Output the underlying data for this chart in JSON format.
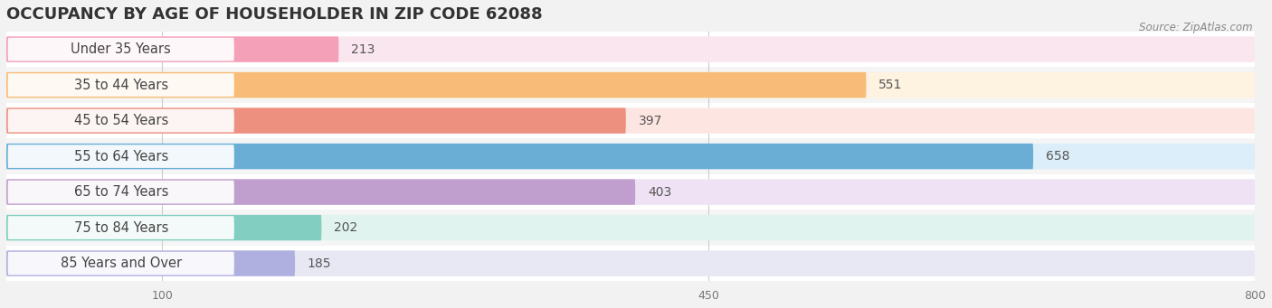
{
  "title": "OCCUPANCY BY AGE OF HOUSEHOLDER IN ZIP CODE 62088",
  "source": "Source: ZipAtlas.com",
  "categories": [
    "Under 35 Years",
    "35 to 44 Years",
    "45 to 54 Years",
    "55 to 64 Years",
    "65 to 74 Years",
    "75 to 84 Years",
    "85 Years and Over"
  ],
  "values": [
    213,
    551,
    397,
    658,
    403,
    202,
    185
  ],
  "bar_colors": [
    "#f4a0b8",
    "#f9bc78",
    "#ee9080",
    "#6aaed5",
    "#c09fce",
    "#82cec0",
    "#b0b0e0"
  ],
  "bar_bg_colors": [
    "#fae6ee",
    "#fef2e0",
    "#fde6e2",
    "#dceef9",
    "#eee2f4",
    "#e0f3ef",
    "#e8e8f5"
  ],
  "xlim_min": 0,
  "xlim_max": 800,
  "xticks": [
    100,
    450,
    800
  ],
  "title_fontsize": 13,
  "label_fontsize": 10.5,
  "value_fontsize": 10,
  "bg_color": "#f2f2f2",
  "row_colors": [
    "#ffffff",
    "#f5f5f5"
  ]
}
